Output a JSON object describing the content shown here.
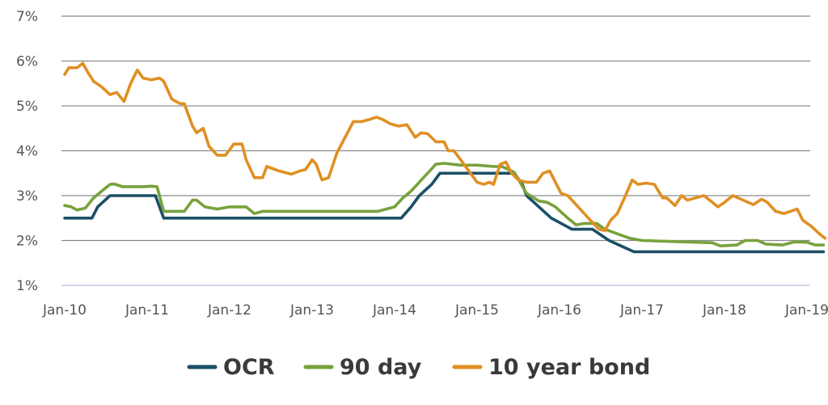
{
  "chart_data": {
    "type": "line",
    "title": "",
    "xlabel": "",
    "ylabel": "",
    "x_ticks": [
      "Jan-10",
      "Jan-11",
      "Jan-12",
      "Jan-13",
      "Jan-14",
      "Jan-15",
      "Jan-16",
      "Jan-17",
      "Jan-18",
      "Jan-19"
    ],
    "y_ticks": [
      "1%",
      "2%",
      "3%",
      "4%",
      "5%",
      "6%",
      "7%"
    ],
    "xlim": [
      2010.0,
      2019.25
    ],
    "ylim": [
      1,
      7
    ],
    "grid": "horizontal",
    "legend_position": "bottom",
    "series": [
      {
        "name": "OCR",
        "color": "#1b4f66",
        "points": [
          [
            2010.0,
            2.5
          ],
          [
            2010.33,
            2.5
          ],
          [
            2010.4,
            2.75
          ],
          [
            2010.55,
            3.0
          ],
          [
            2011.1,
            3.0
          ],
          [
            2011.2,
            2.5
          ],
          [
            2014.08,
            2.5
          ],
          [
            2014.2,
            2.75
          ],
          [
            2014.3,
            3.0
          ],
          [
            2014.45,
            3.25
          ],
          [
            2014.55,
            3.5
          ],
          [
            2015.45,
            3.5
          ],
          [
            2015.55,
            3.25
          ],
          [
            2015.6,
            3.0
          ],
          [
            2015.75,
            2.75
          ],
          [
            2015.9,
            2.5
          ],
          [
            2016.15,
            2.25
          ],
          [
            2016.4,
            2.25
          ],
          [
            2016.6,
            2.0
          ],
          [
            2016.9,
            1.75
          ],
          [
            2019.2,
            1.75
          ]
        ]
      },
      {
        "name": "90 day",
        "color": "#78a23c",
        "points": [
          [
            2010.0,
            2.78
          ],
          [
            2010.08,
            2.75
          ],
          [
            2010.15,
            2.68
          ],
          [
            2010.25,
            2.72
          ],
          [
            2010.35,
            2.95
          ],
          [
            2010.45,
            3.1
          ],
          [
            2010.55,
            3.25
          ],
          [
            2010.6,
            3.26
          ],
          [
            2010.7,
            3.2
          ],
          [
            2010.85,
            3.2
          ],
          [
            2010.95,
            3.2
          ],
          [
            2011.05,
            3.21
          ],
          [
            2011.12,
            3.2
          ],
          [
            2011.2,
            2.65
          ],
          [
            2011.3,
            2.65
          ],
          [
            2011.45,
            2.65
          ],
          [
            2011.55,
            2.9
          ],
          [
            2011.6,
            2.9
          ],
          [
            2011.7,
            2.75
          ],
          [
            2011.85,
            2.7
          ],
          [
            2012.0,
            2.75
          ],
          [
            2012.2,
            2.75
          ],
          [
            2012.3,
            2.6
          ],
          [
            2012.4,
            2.65
          ],
          [
            2012.6,
            2.65
          ],
          [
            2013.0,
            2.65
          ],
          [
            2013.5,
            2.65
          ],
          [
            2013.8,
            2.65
          ],
          [
            2014.0,
            2.75
          ],
          [
            2014.1,
            2.95
          ],
          [
            2014.2,
            3.1
          ],
          [
            2014.35,
            3.4
          ],
          [
            2014.5,
            3.7
          ],
          [
            2014.6,
            3.72
          ],
          [
            2014.8,
            3.68
          ],
          [
            2015.0,
            3.68
          ],
          [
            2015.2,
            3.65
          ],
          [
            2015.3,
            3.65
          ],
          [
            2015.45,
            3.52
          ],
          [
            2015.6,
            3.05
          ],
          [
            2015.75,
            2.88
          ],
          [
            2015.85,
            2.85
          ],
          [
            2015.95,
            2.75
          ],
          [
            2016.1,
            2.5
          ],
          [
            2016.2,
            2.35
          ],
          [
            2016.3,
            2.38
          ],
          [
            2016.45,
            2.38
          ],
          [
            2016.55,
            2.25
          ],
          [
            2016.7,
            2.15
          ],
          [
            2016.85,
            2.05
          ],
          [
            2017.0,
            2.0
          ],
          [
            2017.5,
            1.97
          ],
          [
            2017.85,
            1.95
          ],
          [
            2017.95,
            1.88
          ],
          [
            2018.15,
            1.9
          ],
          [
            2018.25,
            2.0
          ],
          [
            2018.4,
            2.0
          ],
          [
            2018.5,
            1.92
          ],
          [
            2018.7,
            1.9
          ],
          [
            2018.85,
            1.97
          ],
          [
            2019.0,
            1.96
          ],
          [
            2019.1,
            1.9
          ],
          [
            2019.2,
            1.9
          ]
        ]
      },
      {
        "name": "10 year bond",
        "color": "#e08f23",
        "points": [
          [
            2010.0,
            5.7
          ],
          [
            2010.05,
            5.85
          ],
          [
            2010.15,
            5.85
          ],
          [
            2010.22,
            5.95
          ],
          [
            2010.28,
            5.75
          ],
          [
            2010.35,
            5.55
          ],
          [
            2010.45,
            5.42
          ],
          [
            2010.55,
            5.25
          ],
          [
            2010.63,
            5.3
          ],
          [
            2010.72,
            5.1
          ],
          [
            2010.8,
            5.5
          ],
          [
            2010.88,
            5.8
          ],
          [
            2010.95,
            5.62
          ],
          [
            2011.05,
            5.58
          ],
          [
            2011.15,
            5.62
          ],
          [
            2011.2,
            5.55
          ],
          [
            2011.3,
            5.15
          ],
          [
            2011.4,
            5.05
          ],
          [
            2011.45,
            5.05
          ],
          [
            2011.55,
            4.55
          ],
          [
            2011.6,
            4.4
          ],
          [
            2011.68,
            4.5
          ],
          [
            2011.75,
            4.1
          ],
          [
            2011.85,
            3.9
          ],
          [
            2011.95,
            3.9
          ],
          [
            2012.05,
            4.15
          ],
          [
            2012.15,
            4.15
          ],
          [
            2012.2,
            3.8
          ],
          [
            2012.25,
            3.6
          ],
          [
            2012.3,
            3.4
          ],
          [
            2012.4,
            3.4
          ],
          [
            2012.45,
            3.65
          ],
          [
            2012.6,
            3.55
          ],
          [
            2012.75,
            3.48
          ],
          [
            2012.85,
            3.55
          ],
          [
            2012.92,
            3.58
          ],
          [
            2013.0,
            3.8
          ],
          [
            2013.05,
            3.7
          ],
          [
            2013.12,
            3.35
          ],
          [
            2013.2,
            3.4
          ],
          [
            2013.3,
            3.95
          ],
          [
            2013.4,
            4.3
          ],
          [
            2013.5,
            4.65
          ],
          [
            2013.6,
            4.65
          ],
          [
            2013.7,
            4.7
          ],
          [
            2013.78,
            4.75
          ],
          [
            2013.85,
            4.7
          ],
          [
            2013.95,
            4.6
          ],
          [
            2014.05,
            4.55
          ],
          [
            2014.15,
            4.58
          ],
          [
            2014.25,
            4.3
          ],
          [
            2014.32,
            4.4
          ],
          [
            2014.4,
            4.38
          ],
          [
            2014.5,
            4.2
          ],
          [
            2014.6,
            4.2
          ],
          [
            2014.65,
            4.0
          ],
          [
            2014.72,
            4.0
          ],
          [
            2014.8,
            3.8
          ],
          [
            2014.9,
            3.55
          ],
          [
            2015.0,
            3.3
          ],
          [
            2015.08,
            3.25
          ],
          [
            2015.15,
            3.3
          ],
          [
            2015.2,
            3.25
          ],
          [
            2015.28,
            3.7
          ],
          [
            2015.35,
            3.75
          ],
          [
            2015.42,
            3.5
          ],
          [
            2015.5,
            3.35
          ],
          [
            2015.6,
            3.3
          ],
          [
            2015.72,
            3.3
          ],
          [
            2015.8,
            3.5
          ],
          [
            2015.88,
            3.55
          ],
          [
            2015.95,
            3.3
          ],
          [
            2016.02,
            3.05
          ],
          [
            2016.1,
            3.0
          ],
          [
            2016.2,
            2.8
          ],
          [
            2016.3,
            2.6
          ],
          [
            2016.4,
            2.4
          ],
          [
            2016.48,
            2.25
          ],
          [
            2016.55,
            2.22
          ],
          [
            2016.62,
            2.45
          ],
          [
            2016.7,
            2.6
          ],
          [
            2016.8,
            3.0
          ],
          [
            2016.88,
            3.35
          ],
          [
            2016.95,
            3.25
          ],
          [
            2017.05,
            3.28
          ],
          [
            2017.15,
            3.25
          ],
          [
            2017.25,
            2.95
          ],
          [
            2017.3,
            2.95
          ],
          [
            2017.4,
            2.78
          ],
          [
            2017.48,
            3.0
          ],
          [
            2017.55,
            2.9
          ],
          [
            2017.65,
            2.95
          ],
          [
            2017.75,
            3.0
          ],
          [
            2017.82,
            2.9
          ],
          [
            2017.92,
            2.75
          ],
          [
            2018.0,
            2.85
          ],
          [
            2018.1,
            3.0
          ],
          [
            2018.2,
            2.92
          ],
          [
            2018.35,
            2.8
          ],
          [
            2018.45,
            2.92
          ],
          [
            2018.52,
            2.85
          ],
          [
            2018.62,
            2.65
          ],
          [
            2018.72,
            2.6
          ],
          [
            2018.8,
            2.65
          ],
          [
            2018.88,
            2.7
          ],
          [
            2018.95,
            2.45
          ],
          [
            2019.05,
            2.32
          ],
          [
            2019.15,
            2.15
          ],
          [
            2019.22,
            2.05
          ]
        ]
      }
    ]
  }
}
